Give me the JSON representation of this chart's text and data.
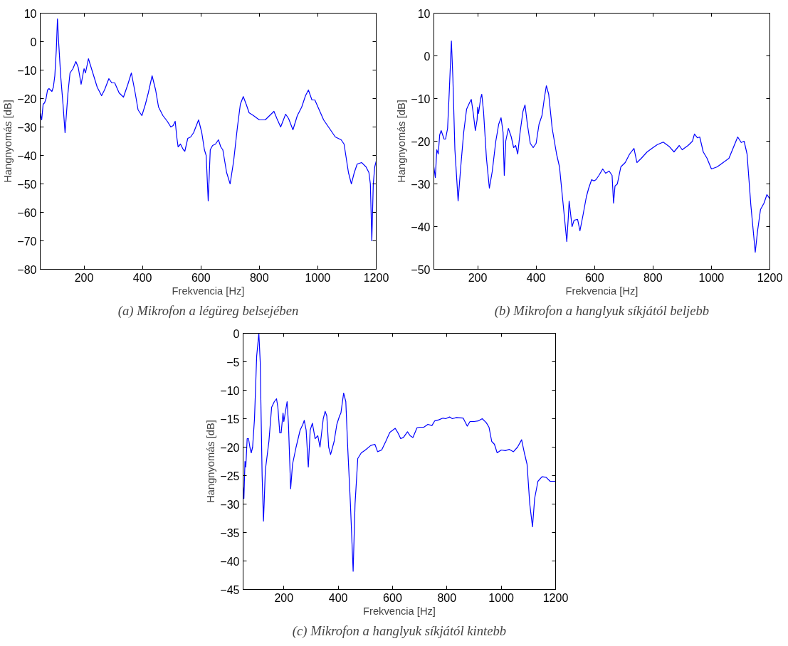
{
  "chart_data": [
    {
      "type": "line",
      "title": "(a) Mikrofon a légüreg belsejében",
      "xlabel": "Frekvencia [Hz]",
      "ylabel": "Hangnyomás [dB]",
      "xlim": [
        50,
        1200
      ],
      "ylim": [
        -80,
        10
      ],
      "xticks": [
        200,
        400,
        600,
        800,
        1000,
        1200
      ],
      "yticks": [
        -80,
        -70,
        -60,
        -50,
        -40,
        -30,
        -20,
        -10,
        0,
        10
      ],
      "grid": false,
      "x": [
        50,
        55,
        60,
        65,
        70,
        75,
        80,
        85,
        90,
        95,
        100,
        105,
        109,
        113,
        120,
        128,
        135,
        145,
        152,
        162,
        172,
        180,
        190,
        200,
        205,
        215,
        230,
        245,
        260,
        270,
        285,
        295,
        305,
        320,
        335,
        350,
        362,
        375,
        385,
        398,
        410,
        420,
        433,
        445,
        455,
        470,
        485,
        497,
        505,
        512,
        518,
        522,
        530,
        540,
        545,
        555,
        565,
        575,
        592,
        603,
        612,
        618,
        625,
        632,
        640,
        650,
        660,
        668,
        675,
        688,
        700,
        712,
        725,
        735,
        745,
        755,
        765,
        780,
        800,
        820,
        835,
        850,
        860,
        873,
        890,
        900,
        915,
        930,
        945,
        958,
        968,
        980,
        990,
        1005,
        1020,
        1040,
        1060,
        1080,
        1090,
        1105,
        1115,
        1125,
        1135,
        1150,
        1165,
        1175,
        1180,
        1185,
        1190,
        1195,
        1200
      ],
      "series": [
        {
          "color": "#0000ff",
          "values": [
            -25,
            -27.5,
            -22,
            -21.5,
            -20,
            -17,
            -16.5,
            -17,
            -17.5,
            -16,
            -12,
            -3,
            8,
            0,
            -12,
            -22,
            -32,
            -18,
            -11,
            -9.5,
            -7,
            -9,
            -15,
            -9.5,
            -11,
            -6,
            -11,
            -16,
            -19,
            -17,
            -13,
            -14.5,
            -14.5,
            -18,
            -19.5,
            -15,
            -11,
            -18,
            -24,
            -26,
            -22,
            -18,
            -12,
            -17,
            -23,
            -26,
            -28,
            -30,
            -29.5,
            -28,
            -34,
            -37,
            -36,
            -38,
            -38.5,
            -34,
            -33.5,
            -32,
            -27.5,
            -32,
            -38,
            -40,
            -56,
            -38,
            -36.5,
            -36,
            -34.5,
            -37,
            -38,
            -46,
            -50,
            -42,
            -30,
            -22,
            -19.3,
            -22,
            -25,
            -26,
            -27.5,
            -27.5,
            -26,
            -24.5,
            -27,
            -30,
            -25.5,
            -27,
            -31,
            -26,
            -23,
            -19,
            -17,
            -20.5,
            -20.5,
            -24,
            -27.5,
            -30.5,
            -33.5,
            -34.5,
            -36,
            -46,
            -50,
            -46,
            -43,
            -42.5,
            -44,
            -46,
            -50,
            -70,
            -50,
            -44,
            -42
          ]
        }
      ]
    },
    {
      "type": "line",
      "title": "(b) Mikrofon a hanglyuk síkjától beljebb",
      "xlabel": "Frekvencia [Hz]",
      "ylabel": "Hangnyomás [dB]",
      "xlim": [
        50,
        1200
      ],
      "ylim": [
        -50,
        10
      ],
      "xticks": [
        200,
        400,
        600,
        800,
        1000,
        1200
      ],
      "yticks": [
        -50,
        -40,
        -30,
        -20,
        -10,
        0,
        10
      ],
      "grid": false,
      "x": [
        50,
        55,
        60,
        65,
        70,
        75,
        85,
        90,
        97,
        103,
        110,
        115,
        122,
        133,
        142,
        152,
        162,
        172,
        178,
        185,
        192,
        198,
        200,
        203,
        210,
        214,
        220,
        230,
        240,
        250,
        262,
        272,
        280,
        287,
        291,
        296,
        305,
        315,
        323,
        330,
        337,
        345,
        355,
        362,
        370,
        380,
        390,
        400,
        410,
        420,
        428,
        435,
        443,
        455,
        470,
        480,
        490,
        505,
        510,
        513,
        518,
        523,
        530,
        542,
        550,
        560,
        572,
        580,
        590,
        598,
        605,
        615,
        628,
        638,
        650,
        660,
        665,
        670,
        678,
        690,
        705,
        720,
        735,
        745,
        760,
        780,
        800,
        815,
        835,
        855,
        872,
        890,
        900,
        920,
        935,
        942,
        952,
        960,
        972,
        985,
        1000,
        1020,
        1040,
        1060,
        1075,
        1090,
        1102,
        1112,
        1122,
        1135,
        1150,
        1158,
        1168,
        1180,
        1190,
        1200
      ],
      "series": [
        {
          "color": "#0000ff",
          "values": [
            -26,
            -28.5,
            -22,
            -23,
            -18.5,
            -17.5,
            -19.5,
            -19.5,
            -17,
            -8,
            3.5,
            -5,
            -22,
            -34,
            -26,
            -18,
            -12.5,
            -11,
            -10.2,
            -13.5,
            -17.5,
            -15,
            -12,
            -13.5,
            -10,
            -9,
            -13,
            -24,
            -31,
            -27,
            -20,
            -16,
            -14.5,
            -18,
            -28,
            -20,
            -17,
            -19,
            -21.5,
            -21,
            -23,
            -18,
            -13,
            -11.5,
            -16,
            -20.5,
            -21.5,
            -20.5,
            -16,
            -14,
            -10,
            -7,
            -9,
            -17,
            -23,
            -26,
            -33,
            -43.5,
            -38,
            -34,
            -37,
            -40,
            -38.5,
            -38.3,
            -41,
            -37.5,
            -33,
            -31,
            -29,
            -29.3,
            -29,
            -28,
            -26.5,
            -27.5,
            -27,
            -28,
            -34.5,
            -30.5,
            -30,
            -26,
            -25,
            -23,
            -21.7,
            -25,
            -24,
            -22.5,
            -21.5,
            -20.8,
            -20.2,
            -21.2,
            -22.5,
            -21,
            -22,
            -21,
            -20,
            -18.3,
            -19.2,
            -19,
            -22.5,
            -24,
            -26.5,
            -26,
            -25,
            -24,
            -21.5,
            -19,
            -20.3,
            -20,
            -23,
            -35,
            -46,
            -41,
            -36,
            -34.5,
            -32.5,
            -33.5
          ]
        }
      ]
    },
    {
      "type": "line",
      "title": "(c) Mikrofon a hanglyuk síkjától kintebb",
      "xlabel": "Frekvencia [Hz]",
      "ylabel": "Hangnyomás [dB]",
      "xlim": [
        50,
        1200
      ],
      "ylim": [
        -45,
        0
      ],
      "xticks": [
        200,
        400,
        600,
        800,
        1000,
        1200
      ],
      "yticks": [
        -45,
        -40,
        -35,
        -30,
        -25,
        -20,
        -15,
        -10,
        -5,
        0
      ],
      "grid": false,
      "x": [
        50,
        53,
        57,
        60,
        65,
        70,
        75,
        80,
        85,
        92,
        100,
        108,
        113,
        120,
        125,
        132,
        145,
        155,
        165,
        173,
        178,
        185,
        190,
        197,
        200,
        205,
        212,
        217,
        225,
        232,
        245,
        260,
        270,
        275,
        282,
        290,
        297,
        305,
        315,
        325,
        333,
        345,
        352,
        358,
        365,
        372,
        385,
        395,
        405,
        410,
        420,
        428,
        435,
        445,
        455,
        462,
        472,
        485,
        500,
        520,
        535,
        545,
        560,
        575,
        590,
        610,
        620,
        630,
        640,
        655,
        665,
        675,
        690,
        700,
        715,
        730,
        745,
        755,
        770,
        785,
        795,
        810,
        820,
        835,
        860,
        875,
        885,
        900,
        915,
        930,
        945,
        955,
        965,
        975,
        985,
        1000,
        1015,
        1030,
        1045,
        1060,
        1075,
        1085,
        1095,
        1105,
        1115,
        1123,
        1135,
        1150,
        1165,
        1180,
        1200
      ],
      "series": [
        {
          "color": "#0000ff",
          "values": [
            -27,
            -29,
            -22.5,
            -23.5,
            -18.5,
            -18.5,
            -20,
            -21,
            -20,
            -15,
            -4,
            0,
            -5,
            -25,
            -33,
            -24,
            -19,
            -13,
            -12,
            -11.5,
            -13,
            -17.5,
            -17.5,
            -14,
            -15.5,
            -14,
            -12,
            -16,
            -27.3,
            -23,
            -20,
            -17,
            -16,
            -15.3,
            -17,
            -23.5,
            -17,
            -15.8,
            -18.5,
            -18,
            -20,
            -15,
            -13.7,
            -14.5,
            -20,
            -21.3,
            -19,
            -16,
            -14.5,
            -14,
            -10.5,
            -12,
            -20,
            -30,
            -41.8,
            -30,
            -22,
            -21,
            -20.5,
            -19.7,
            -19.5,
            -20.8,
            -20.5,
            -19,
            -17.4,
            -16.7,
            -17.5,
            -18.5,
            -18.3,
            -17.3,
            -18,
            -18.3,
            -16.6,
            -16.5,
            -16.5,
            -16,
            -16.2,
            -15.4,
            -15.2,
            -14.9,
            -15,
            -14.7,
            -15,
            -14.8,
            -14.9,
            -16.3,
            -15.5,
            -15.5,
            -15.4,
            -15,
            -15.7,
            -16.5,
            -19,
            -19.5,
            -21,
            -20.5,
            -20.6,
            -20.4,
            -20.8,
            -20,
            -18.7,
            -21,
            -23,
            -30,
            -34,
            -29,
            -26,
            -25.2,
            -25.3,
            -26,
            -26
          ]
        }
      ]
    }
  ]
}
